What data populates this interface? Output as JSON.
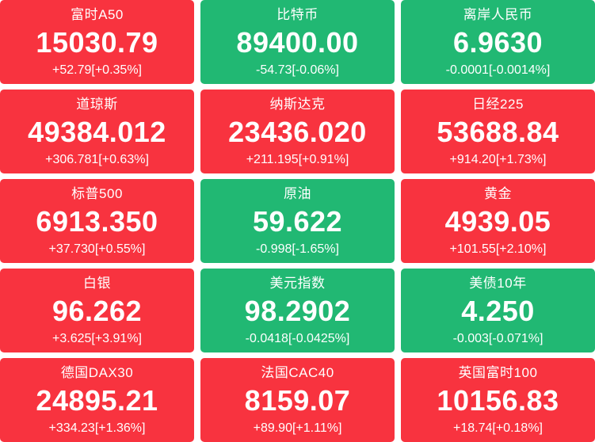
{
  "colors": {
    "up_bg": "#F8333F",
    "down_bg": "#21B873",
    "text": "#FFFFFF",
    "gap_bg": "#FFFFFF"
  },
  "tiles": [
    {
      "name": "富时A50",
      "value": "15030.79",
      "change": "+52.79[+0.35%]",
      "direction": "up"
    },
    {
      "name": "比特币",
      "value": "89400.00",
      "change": "-54.73[-0.06%]",
      "direction": "down"
    },
    {
      "name": "离岸人民币",
      "value": "6.9630",
      "change": "-0.0001[-0.0014%]",
      "direction": "down"
    },
    {
      "name": "道琼斯",
      "value": "49384.012",
      "change": "+306.781[+0.63%]",
      "direction": "up"
    },
    {
      "name": "纳斯达克",
      "value": "23436.020",
      "change": "+211.195[+0.91%]",
      "direction": "up"
    },
    {
      "name": "日经225",
      "value": "53688.84",
      "change": "+914.20[+1.73%]",
      "direction": "up"
    },
    {
      "name": "标普500",
      "value": "6913.350",
      "change": "+37.730[+0.55%]",
      "direction": "up"
    },
    {
      "name": "原油",
      "value": "59.622",
      "change": "-0.998[-1.65%]",
      "direction": "down"
    },
    {
      "name": "黄金",
      "value": "4939.05",
      "change": "+101.55[+2.10%]",
      "direction": "up"
    },
    {
      "name": "白银",
      "value": "96.262",
      "change": "+3.625[+3.91%]",
      "direction": "up"
    },
    {
      "name": "美元指数",
      "value": "98.2902",
      "change": "-0.0418[-0.0425%]",
      "direction": "down"
    },
    {
      "name": "美债10年",
      "value": "4.250",
      "change": "-0.003[-0.071%]",
      "direction": "down"
    },
    {
      "name": "德国DAX30",
      "value": "24895.21",
      "change": "+334.23[+1.36%]",
      "direction": "up"
    },
    {
      "name": "法国CAC40",
      "value": "8159.07",
      "change": "+89.90[+1.11%]",
      "direction": "up"
    },
    {
      "name": "英国富时100",
      "value": "10156.83",
      "change": "+18.74[+0.18%]",
      "direction": "up"
    }
  ]
}
